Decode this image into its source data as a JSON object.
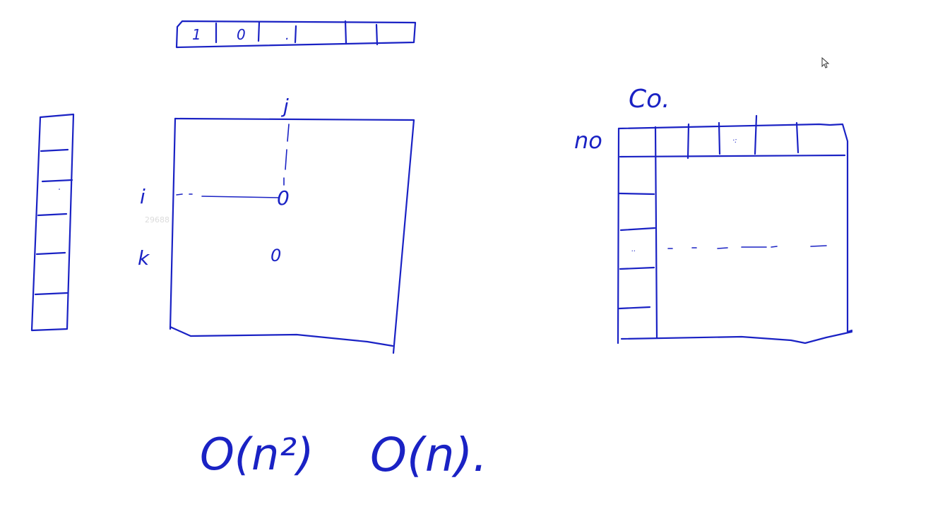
{
  "whiteboard": {
    "ink_color": "#1a22c4",
    "background": "#ffffff",
    "top_array_cells": [
      "1",
      "0",
      "."
    ],
    "matrix_col_label": "j",
    "matrix_row_labels": [
      "i",
      "k"
    ],
    "matrix_marks": [
      "0",
      "0"
    ],
    "watermark": "29688",
    "table_title": "Co.",
    "table_row_label": "no",
    "table_cell_dots": [
      "·:",
      ".."
    ],
    "complexity_left": "O(n²)",
    "complexity_right": "O(n)."
  }
}
